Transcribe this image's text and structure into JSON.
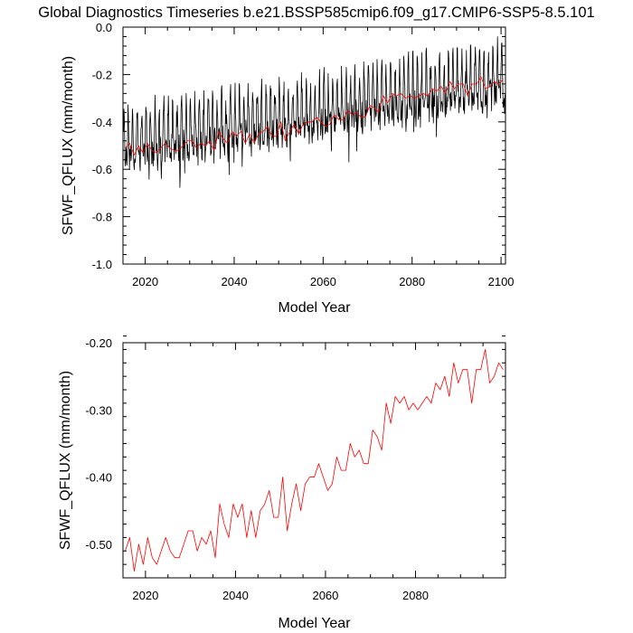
{
  "title": "Global Diagnostics Timeseries b.e21.BSSP585cmip6.f09_g17.CMIP6-SSP5-8.5.101",
  "colors": {
    "monthly": "#000000",
    "annual": "#ff0000",
    "axis": "#000000"
  },
  "chart_data": [
    {
      "type": "line",
      "xlabel": "Model Year",
      "ylabel": "SFWF_QFLUX (mm/month)",
      "xlim": [
        2015,
        2101
      ],
      "ylim": [
        -1.0,
        0.0
      ],
      "xticks": [
        2020,
        2040,
        2060,
        2080,
        2100
      ],
      "xtick_labels": [
        "2020",
        "2040",
        "2060",
        "2080",
        "2100"
      ],
      "yticks": [
        -1.0,
        -0.8,
        -0.6,
        -0.4,
        -0.2,
        0.0
      ],
      "ytick_labels": [
        "-1.0",
        "-0.8",
        "-0.6",
        "-0.4",
        "-0.2",
        "0.0"
      ],
      "grid": false,
      "series": [
        {
          "color": "#000000",
          "description_units": "monthly values, one per month from 2015 to 2100",
          "trend_start": -0.5,
          "trend_end": -0.22,
          "x_start": 2015.04,
          "months": 1032
        },
        {
          "color": "#ff0000",
          "x": [
            2015.5,
            2016.5,
            2017.5,
            2018.5,
            2019.5,
            2020.5,
            2021.5,
            2022.5,
            2023.5,
            2024.5,
            2025.5,
            2026.5,
            2027.5,
            2028.5,
            2029.5,
            2030.5,
            2031.5,
            2032.5,
            2033.5,
            2034.5,
            2035.5,
            2036.5,
            2037.5,
            2038.5,
            2039.5,
            2040.5,
            2041.5,
            2042.5,
            2043.5,
            2044.5,
            2045.5,
            2046.5,
            2047.5,
            2048.5,
            2049.5,
            2050.5,
            2051.5,
            2052.5,
            2053.5,
            2054.5,
            2055.5,
            2056.5,
            2057.5,
            2058.5,
            2059.5,
            2060.5,
            2061.5,
            2062.5,
            2063.5,
            2064.5,
            2065.5,
            2066.5,
            2067.5,
            2068.5,
            2069.5,
            2070.5,
            2071.5,
            2072.5,
            2073.5,
            2074.5,
            2075.5,
            2076.5,
            2077.5,
            2078.5,
            2079.5,
            2080.5,
            2081.5,
            2082.5,
            2083.5,
            2084.5,
            2085.5,
            2086.5,
            2087.5,
            2088.5,
            2089.5,
            2090.5,
            2091.5,
            2092.5,
            2093.5,
            2094.5,
            2095.5,
            2096.5,
            2097.5,
            2098.5,
            2099.5,
            2100.5
          ],
          "y": [
            -0.51,
            -0.49,
            -0.54,
            -0.5,
            -0.53,
            -0.49,
            -0.52,
            -0.53,
            -0.51,
            -0.49,
            -0.51,
            -0.52,
            -0.52,
            -0.5,
            -0.48,
            -0.48,
            -0.51,
            -0.49,
            -0.5,
            -0.48,
            -0.52,
            -0.44,
            -0.47,
            -0.49,
            -0.44,
            -0.46,
            -0.44,
            -0.49,
            -0.45,
            -0.49,
            -0.45,
            -0.44,
            -0.42,
            -0.46,
            -0.46,
            -0.4,
            -0.48,
            -0.44,
            -0.41,
            -0.45,
            -0.41,
            -0.4,
            -0.4,
            -0.38,
            -0.4,
            -0.42,
            -0.41,
            -0.37,
            -0.39,
            -0.39,
            -0.35,
            -0.37,
            -0.36,
            -0.38,
            -0.38,
            -0.33,
            -0.34,
            -0.36,
            -0.29,
            -0.32,
            -0.28,
            -0.29,
            -0.28,
            -0.3,
            -0.29,
            -0.3,
            -0.29,
            -0.28,
            -0.29,
            -0.26,
            -0.27,
            -0.25,
            -0.28,
            -0.23,
            -0.26,
            -0.24,
            -0.24,
            -0.29,
            -0.24,
            -0.24,
            -0.21,
            -0.26,
            -0.25,
            -0.23,
            -0.24,
            -0.22
          ]
        }
      ]
    },
    {
      "type": "line",
      "xlabel": "Model Year",
      "ylabel": "SFWF_QFLUX (mm/month)",
      "xlim": [
        2015,
        2100
      ],
      "ylim": [
        -0.55,
        -0.2
      ],
      "xticks": [
        2020,
        2040,
        2060,
        2080
      ],
      "xtick_labels": [
        "2020",
        "2040",
        "2060",
        "2080"
      ],
      "yticks": [
        -0.5,
        -0.4,
        -0.3,
        -0.2
      ],
      "ytick_labels": [
        "-0.50",
        "-0.40",
        "-0.30",
        "-0.20"
      ],
      "grid": false,
      "series": [
        {
          "color": "#ff0000",
          "x": [
            2015.5,
            2016.5,
            2017.5,
            2018.5,
            2019.5,
            2020.5,
            2021.5,
            2022.5,
            2023.5,
            2024.5,
            2025.5,
            2026.5,
            2027.5,
            2028.5,
            2029.5,
            2030.5,
            2031.5,
            2032.5,
            2033.5,
            2034.5,
            2035.5,
            2036.5,
            2037.5,
            2038.5,
            2039.5,
            2040.5,
            2041.5,
            2042.5,
            2043.5,
            2044.5,
            2045.5,
            2046.5,
            2047.5,
            2048.5,
            2049.5,
            2050.5,
            2051.5,
            2052.5,
            2053.5,
            2054.5,
            2055.5,
            2056.5,
            2057.5,
            2058.5,
            2059.5,
            2060.5,
            2061.5,
            2062.5,
            2063.5,
            2064.5,
            2065.5,
            2066.5,
            2067.5,
            2068.5,
            2069.5,
            2070.5,
            2071.5,
            2072.5,
            2073.5,
            2074.5,
            2075.5,
            2076.5,
            2077.5,
            2078.5,
            2079.5,
            2080.5,
            2081.5,
            2082.5,
            2083.5,
            2084.5,
            2085.5,
            2086.5,
            2087.5,
            2088.5,
            2089.5,
            2090.5,
            2091.5,
            2092.5,
            2093.5,
            2094.5,
            2095.5,
            2096.5,
            2097.5,
            2098.5,
            2099.5
          ],
          "y": [
            -0.51,
            -0.49,
            -0.54,
            -0.5,
            -0.53,
            -0.49,
            -0.52,
            -0.53,
            -0.51,
            -0.49,
            -0.51,
            -0.52,
            -0.52,
            -0.5,
            -0.48,
            -0.48,
            -0.51,
            -0.49,
            -0.5,
            -0.48,
            -0.52,
            -0.44,
            -0.47,
            -0.49,
            -0.44,
            -0.46,
            -0.44,
            -0.49,
            -0.45,
            -0.49,
            -0.45,
            -0.44,
            -0.42,
            -0.46,
            -0.46,
            -0.4,
            -0.48,
            -0.44,
            -0.41,
            -0.45,
            -0.41,
            -0.4,
            -0.4,
            -0.38,
            -0.4,
            -0.42,
            -0.41,
            -0.37,
            -0.39,
            -0.39,
            -0.35,
            -0.37,
            -0.36,
            -0.38,
            -0.38,
            -0.33,
            -0.34,
            -0.36,
            -0.29,
            -0.32,
            -0.28,
            -0.29,
            -0.28,
            -0.3,
            -0.29,
            -0.3,
            -0.29,
            -0.28,
            -0.29,
            -0.26,
            -0.27,
            -0.25,
            -0.28,
            -0.23,
            -0.26,
            -0.24,
            -0.24,
            -0.29,
            -0.24,
            -0.24,
            -0.21,
            -0.26,
            -0.25,
            -0.23,
            -0.24
          ]
        }
      ]
    }
  ]
}
